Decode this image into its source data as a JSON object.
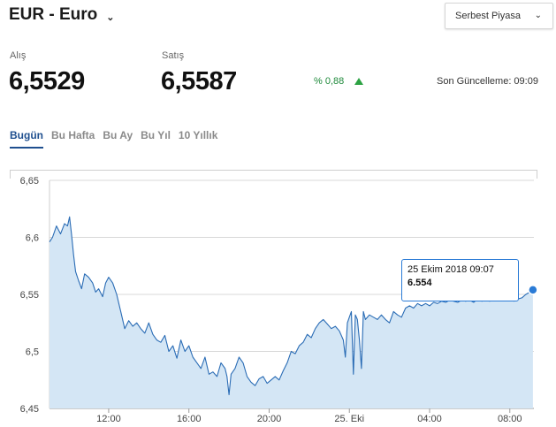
{
  "header": {
    "title": "EUR - Euro",
    "title_icon": "chevron-down-icon",
    "market_select": {
      "value": "Serbest Piyasa",
      "icon": "chevron-down-icon"
    }
  },
  "quotes": {
    "buy_label": "Alış",
    "buy_value": "6,5529",
    "sell_label": "Satış",
    "sell_value": "6,5587",
    "change": "% 0,88",
    "change_direction": "up",
    "change_color": "#2ca243",
    "last_update": "Son Güncelleme: 09:09"
  },
  "tabs": [
    {
      "label": "Bugün",
      "active": true
    },
    {
      "label": "Bu Hafta",
      "active": false
    },
    {
      "label": "Bu Ay",
      "active": false
    },
    {
      "label": "Bu Yıl",
      "active": false
    },
    {
      "label": "10 Yıllık",
      "active": false
    }
  ],
  "tooltip": {
    "date": "25 Ekim 2018 09:07",
    "value": "6.554"
  },
  "chart_data": {
    "type": "area",
    "line_color": "#2a6cb5",
    "fill_color": "#d4e6f5",
    "marker_color": "#2a7bd6",
    "grid": true,
    "ylim": [
      6.45,
      6.65
    ],
    "y_ticks": [
      "6,65",
      "6,6",
      "6,55",
      "6,5",
      "6,45"
    ],
    "x_ticks": [
      "12:00",
      "16:00",
      "20:00",
      "25. Eki",
      "04:00",
      "08:00"
    ],
    "x_tick_hours": [
      12,
      16,
      20,
      24,
      28,
      32
    ],
    "x_range_hours": [
      9.05,
      33.2
    ],
    "series": [
      {
        "x": [
          9.05,
          9.2,
          9.4,
          9.6,
          9.8,
          9.95,
          10.05,
          10.15,
          10.25,
          10.35,
          10.5,
          10.65,
          10.8,
          11.0,
          11.2,
          11.35,
          11.5,
          11.7,
          11.85,
          12.0,
          12.2,
          12.4,
          12.6,
          12.8,
          13.0,
          13.2,
          13.4,
          13.6,
          13.8,
          14.0,
          14.2,
          14.4,
          14.6,
          14.8,
          15.0,
          15.2,
          15.4,
          15.6,
          15.8,
          16.0,
          16.2,
          16.4,
          16.6,
          16.8,
          17.0,
          17.2,
          17.4,
          17.6,
          17.8,
          17.9,
          18.0,
          18.1,
          18.3,
          18.5,
          18.7,
          18.9,
          19.1,
          19.3,
          19.5,
          19.7,
          19.9,
          20.1,
          20.3,
          20.5,
          20.7,
          20.9,
          21.1,
          21.3,
          21.5,
          21.7,
          21.9,
          22.1,
          22.3,
          22.5,
          22.7,
          22.9,
          23.1,
          23.3,
          23.5,
          23.7,
          23.8,
          23.9,
          24.0,
          24.1,
          24.2,
          24.3,
          24.4,
          24.5,
          24.6,
          24.7,
          24.8,
          24.9,
          25.0,
          25.2,
          25.4,
          25.6,
          25.8,
          26.0,
          26.2,
          26.4,
          26.6,
          26.8,
          27.0,
          27.2,
          27.4,
          27.6,
          27.8,
          28.0,
          28.2,
          28.4,
          28.6,
          28.8,
          29.0,
          29.2,
          29.4,
          29.6,
          29.8,
          30.0,
          30.2,
          30.4,
          30.6,
          30.8,
          31.0,
          31.2,
          31.4,
          31.6,
          31.8,
          32.0,
          32.2,
          32.4,
          32.6,
          32.8,
          33.0,
          33.15
        ],
        "y": [
          6.596,
          6.6,
          6.61,
          6.603,
          6.612,
          6.61,
          6.618,
          6.602,
          6.585,
          6.57,
          6.562,
          6.555,
          6.568,
          6.565,
          6.56,
          6.552,
          6.555,
          6.548,
          6.56,
          6.565,
          6.56,
          6.55,
          6.535,
          6.52,
          6.527,
          6.522,
          6.525,
          6.52,
          6.516,
          6.525,
          6.515,
          6.51,
          6.508,
          6.514,
          6.5,
          6.505,
          6.494,
          6.51,
          6.5,
          6.505,
          6.495,
          6.49,
          6.485,
          6.495,
          6.48,
          6.482,
          6.478,
          6.49,
          6.485,
          6.478,
          6.462,
          6.48,
          6.485,
          6.495,
          6.49,
          6.478,
          6.473,
          6.47,
          6.476,
          6.478,
          6.472,
          6.475,
          6.478,
          6.475,
          6.483,
          6.49,
          6.5,
          6.498,
          6.505,
          6.508,
          6.515,
          6.512,
          6.52,
          6.525,
          6.528,
          6.524,
          6.52,
          6.522,
          6.518,
          6.51,
          6.495,
          6.525,
          6.53,
          6.535,
          6.48,
          6.532,
          6.528,
          6.51,
          6.485,
          6.535,
          6.528,
          6.53,
          6.532,
          6.53,
          6.528,
          6.532,
          6.528,
          6.525,
          6.535,
          6.532,
          6.53,
          6.538,
          6.54,
          6.538,
          6.542,
          6.54,
          6.542,
          6.54,
          6.543,
          6.542,
          6.544,
          6.543,
          6.545,
          6.544,
          6.543,
          6.545,
          6.544,
          6.545,
          6.543,
          6.546,
          6.544,
          6.545,
          6.544,
          6.546,
          6.545,
          6.547,
          6.545,
          6.546,
          6.544,
          6.546,
          6.547,
          6.55,
          6.552,
          6.554
        ],
        "last_value": 6.554,
        "last_label": "25 Ekim 2018 09:07"
      }
    ]
  }
}
